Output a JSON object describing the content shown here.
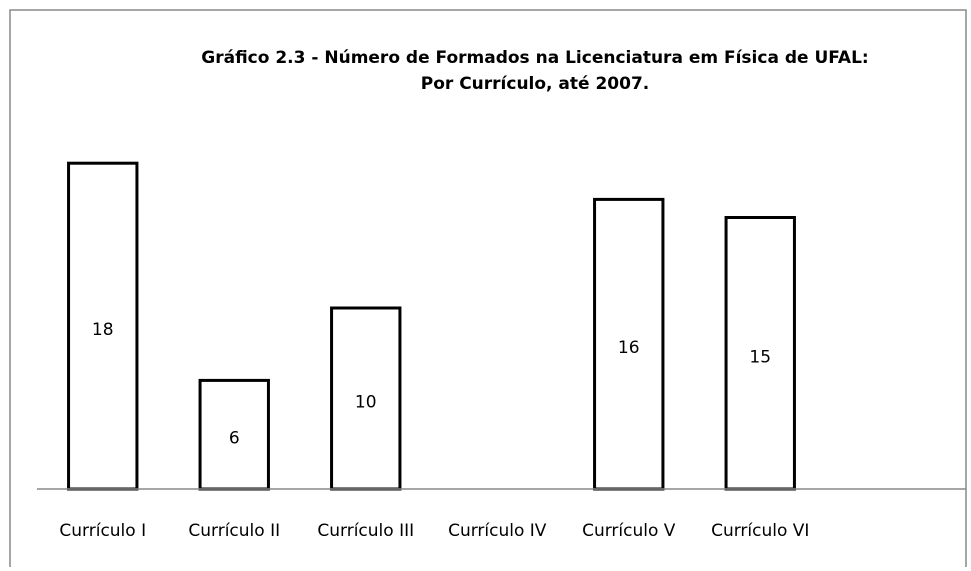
{
  "chart_data": {
    "type": "bar",
    "title": [
      "Gráfico 2.3 - Número de Formados na Licenciatura em Física de UFAL:",
      "Por Currículo, até 2007."
    ],
    "categories": [
      "Currículo I",
      "Currículo II",
      "Currículo III",
      "Currículo IV",
      "Currículo V",
      "Currículo VI"
    ],
    "values": [
      18,
      6,
      10,
      0,
      16,
      15
    ],
    "color": "#ffffff",
    "edge_color": "#000000",
    "ylim": [
      0,
      20
    ]
  }
}
